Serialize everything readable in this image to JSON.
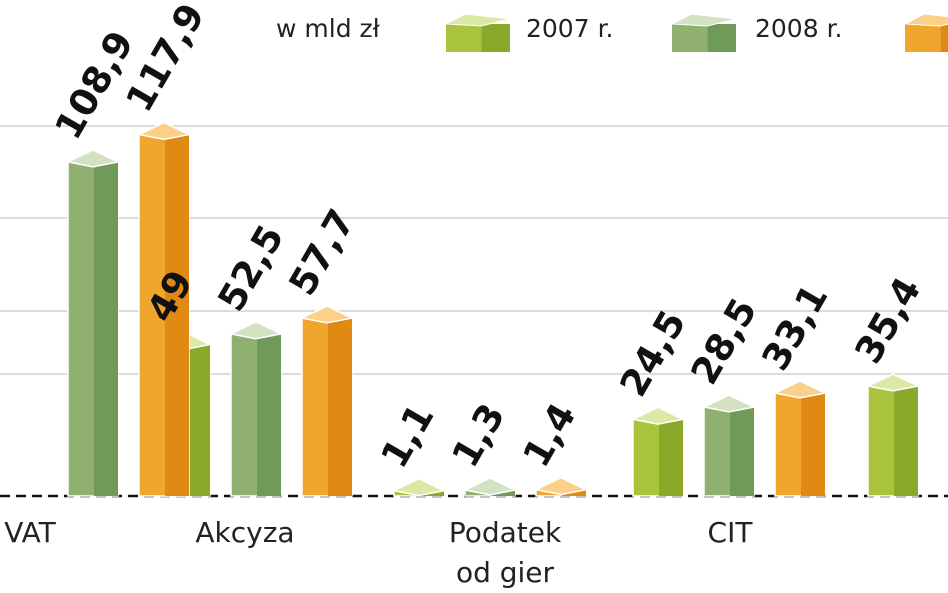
{
  "chart_data": {
    "type": "bar",
    "unit_label": "w mld zł",
    "categories": [
      "VAT",
      "Akcyza",
      "Podatek od gier",
      "CIT",
      ""
    ],
    "category_lines": [
      [
        "VAT"
      ],
      [
        "Akcyza"
      ],
      [
        "Podatek",
        "od gier"
      ],
      [
        "CIT"
      ],
      [
        ""
      ]
    ],
    "series": [
      {
        "name": "2007 r.",
        "color": "#a9c43c",
        "values": [
          null,
          49,
          1.1,
          24.5,
          35.4
        ],
        "labels": [
          "",
          "49",
          "1,1",
          "24,5",
          "35,4"
        ]
      },
      {
        "name": "2008 r.",
        "color": "#8fb06e",
        "values": [
          108.9,
          52.5,
          1.3,
          28.5,
          null
        ],
        "labels": [
          "108,9",
          "52,5",
          "1,3",
          "28,5",
          ""
        ]
      },
      {
        "name": "",
        "color": "#f0a52c",
        "values": [
          117.9,
          57.7,
          1.4,
          33.1,
          null
        ],
        "labels": [
          "117,9",
          "57,7",
          "1,4",
          "33,1",
          ""
        ]
      }
    ],
    "ylim": [
      0,
      120
    ],
    "grid": true,
    "legend": "top"
  }
}
